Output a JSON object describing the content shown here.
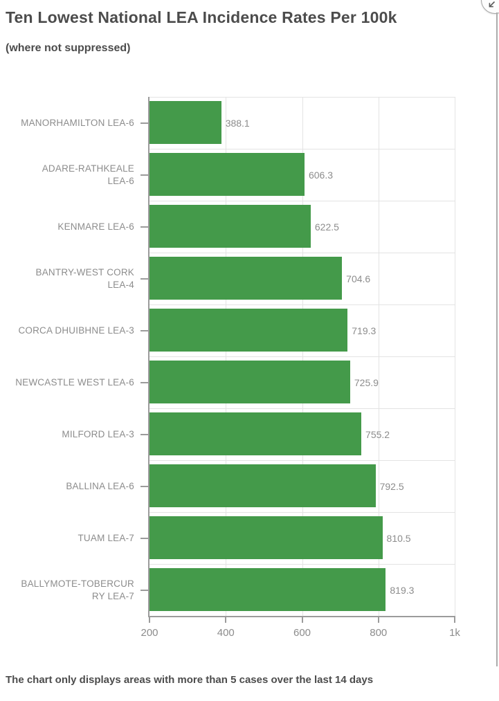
{
  "header": {
    "collapse_button": {
      "icon": "arrow-down-left"
    }
  },
  "chart_data": {
    "type": "bar",
    "orientation": "horizontal",
    "title": "Ten Lowest National LEA Incidence Rates Per 100k",
    "subtitle": "(where not suppressed)",
    "categories": [
      "MANORHAMILTON LEA-6",
      "ADARE-RATHKEALE LEA-6",
      "KENMARE LEA-6",
      "BANTRY-WEST CORK LEA-4",
      "CORCA DHUIBHNE LEA-3",
      "NEWCASTLE WEST LEA-6",
      "MILFORD LEA-3",
      "BALLINA LEA-6",
      "TUAM LEA-7",
      "BALLYMOTE-TOBERCURRY LEA-7"
    ],
    "category_display_lines": [
      [
        "MANORHAMILTON LEA-6"
      ],
      [
        "ADARE-RATHKEALE",
        "LEA-6"
      ],
      [
        "KENMARE LEA-6"
      ],
      [
        "BANTRY-WEST CORK",
        "LEA-4"
      ],
      [
        "CORCA DHUIBHNE LEA-3"
      ],
      [
        "NEWCASTLE WEST LEA-6"
      ],
      [
        "MILFORD LEA-3"
      ],
      [
        "BALLINA LEA-6"
      ],
      [
        "TUAM LEA-7"
      ],
      [
        "BALLYMOTE-TOBERCUR",
        "RY LEA-7"
      ]
    ],
    "values": [
      388.1,
      606.3,
      622.5,
      704.6,
      719.3,
      725.9,
      755.2,
      792.5,
      810.5,
      819.3
    ],
    "value_labels": [
      "388.1",
      "606.3",
      "622.5",
      "704.6",
      "719.3",
      "725.9",
      "755.2",
      "792.5",
      "810.5",
      "819.3"
    ],
    "xlim": [
      200,
      1000
    ],
    "x_ticks": [
      {
        "value": 200,
        "label": "200"
      },
      {
        "value": 400,
        "label": "400"
      },
      {
        "value": 600,
        "label": "600"
      },
      {
        "value": 800,
        "label": "800"
      },
      {
        "value": 1000,
        "label": "1k"
      }
    ],
    "grid": true,
    "legend": "none",
    "xlabel": "",
    "ylabel": "",
    "colors": {
      "bar": "#449a4a",
      "axis": "#9b9b9b",
      "grid": "#e3e3e3",
      "tick_label": "#8c8c8c",
      "value_label": "#8c8c8c",
      "title": "#4c4c4c"
    }
  },
  "footer": {
    "note": "The chart only displays areas with more than 5 cases over the last 14 days"
  }
}
